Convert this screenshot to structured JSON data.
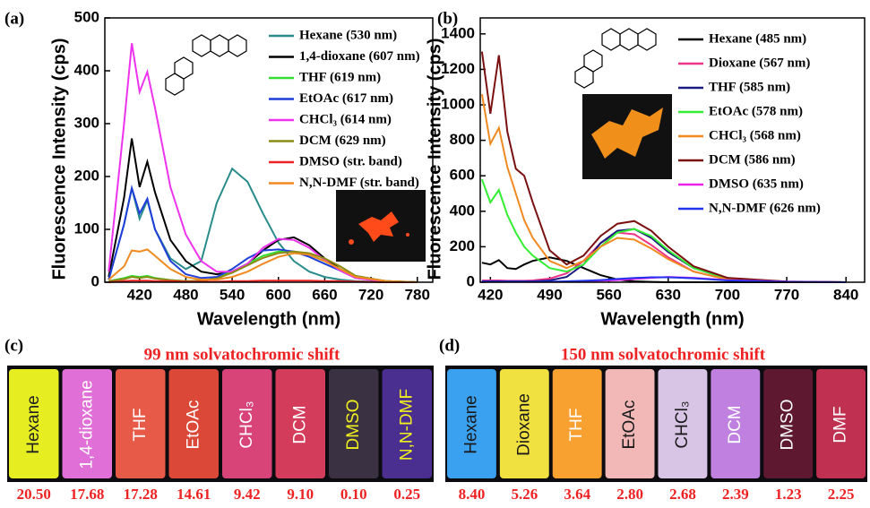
{
  "chart_data": [
    {
      "type": "line",
      "label": "(a)",
      "x_label": "Wavelength (nm)",
      "y_label": "Fluorescence Intensity (cps)",
      "xlim": [
        375,
        800
      ],
      "ylim": [
        0,
        500
      ],
      "xticks": [
        420,
        480,
        540,
        600,
        660,
        720,
        780
      ],
      "yticks": [
        0,
        100,
        200,
        300,
        400,
        500
      ],
      "x": [
        380,
        400,
        410,
        420,
        430,
        440,
        460,
        480,
        500,
        520,
        540,
        560,
        580,
        600,
        620,
        640,
        660,
        680,
        700,
        740,
        780
      ],
      "series": [
        {
          "name": "Hexane (530 nm)",
          "color": "#2a8c8c",
          "values": [
            5,
            110,
            178,
            120,
            155,
            100,
            45,
            25,
            40,
            150,
            215,
            190,
            130,
            75,
            40,
            20,
            10,
            5,
            2,
            0,
            0
          ]
        },
        {
          "name": "1,4-dioxane (607 nm)",
          "color": "#000000",
          "values": [
            10,
            160,
            272,
            180,
            228,
            170,
            80,
            40,
            20,
            15,
            20,
            35,
            60,
            80,
            85,
            70,
            45,
            25,
            10,
            2,
            0
          ]
        },
        {
          "name": "THF (619 nm)",
          "color": "#33dd33",
          "values": [
            2,
            8,
            12,
            10,
            12,
            8,
            4,
            2,
            3,
            8,
            20,
            35,
            50,
            58,
            58,
            52,
            40,
            25,
            10,
            2,
            0
          ]
        },
        {
          "name": "EtOAc (617 nm)",
          "color": "#1f3fd8",
          "values": [
            5,
            110,
            178,
            130,
            158,
            100,
            40,
            15,
            8,
            10,
            25,
            45,
            60,
            62,
            58,
            48,
            35,
            22,
            8,
            1,
            0
          ]
        },
        {
          "name": "CHCl₃ (614 nm)",
          "color": "#ee33ee",
          "values": [
            20,
            300,
            452,
            360,
            398,
            330,
            180,
            90,
            40,
            20,
            20,
            35,
            65,
            82,
            80,
            65,
            42,
            22,
            8,
            1,
            0
          ]
        },
        {
          "name": "DCM (629 nm)",
          "color": "#8b8b14",
          "values": [
            2,
            6,
            10,
            8,
            10,
            7,
            4,
            2,
            3,
            7,
            18,
            32,
            46,
            55,
            58,
            55,
            45,
            30,
            12,
            2,
            0
          ]
        },
        {
          "name": "DMSO (str. band)",
          "color": "#ee2222",
          "values": [
            0,
            2,
            3,
            3,
            3,
            2,
            2,
            1,
            1,
            1,
            2,
            2,
            3,
            3,
            3,
            3,
            2,
            2,
            1,
            0,
            0
          ]
        },
        {
          "name": "N,N-DMF (str. band)",
          "color": "#f08a20",
          "values": [
            5,
            30,
            60,
            58,
            62,
            50,
            25,
            10,
            5,
            5,
            10,
            20,
            35,
            48,
            55,
            52,
            40,
            25,
            10,
            2,
            0
          ]
        }
      ]
    },
    {
      "type": "line",
      "label": "(b)",
      "x_label": "Wavelength (nm)",
      "y_label": "Fluorescence Intensity (cps)",
      "xlim": [
        408,
        862
      ],
      "ylim": [
        0,
        1490
      ],
      "xticks": [
        420,
        490,
        560,
        630,
        700,
        770,
        840
      ],
      "yticks": [
        0,
        200,
        400,
        600,
        800,
        1000,
        1200,
        1400
      ],
      "x": [
        410,
        420,
        430,
        440,
        450,
        460,
        470,
        490,
        510,
        530,
        550,
        570,
        590,
        610,
        630,
        660,
        700,
        770,
        840
      ],
      "series": [
        {
          "name": "Hexane (485 nm)",
          "color": "#000000",
          "values": [
            110,
            100,
            125,
            80,
            75,
            100,
            120,
            140,
            120,
            80,
            40,
            15,
            5,
            2,
            0,
            0,
            0,
            0,
            0
          ]
        },
        {
          "name": "Dioxane (567 nm)",
          "color": "#ee3388",
          "values": [
            10,
            10,
            10,
            8,
            8,
            8,
            10,
            20,
            50,
            120,
            220,
            280,
            270,
            210,
            140,
            60,
            15,
            2,
            0
          ]
        },
        {
          "name": "THF (585 nm)",
          "color": "#1a1a80",
          "values": [
            5,
            5,
            5,
            5,
            5,
            5,
            5,
            10,
            30,
            100,
            220,
            290,
            300,
            250,
            170,
            80,
            20,
            3,
            0
          ]
        },
        {
          "name": "EtOAc (578 nm)",
          "color": "#33ee33",
          "values": [
            580,
            450,
            520,
            380,
            280,
            200,
            150,
            80,
            60,
            100,
            200,
            280,
            300,
            260,
            180,
            80,
            20,
            3,
            0
          ]
        },
        {
          "name": "CHCl₃ (568 nm)",
          "color": "#f08a20",
          "values": [
            1060,
            780,
            870,
            650,
            500,
            350,
            250,
            120,
            80,
            120,
            200,
            250,
            240,
            190,
            130,
            60,
            15,
            2,
            0
          ]
        },
        {
          "name": "DCM (586 nm)",
          "color": "#7a1010",
          "values": [
            1300,
            950,
            1280,
            850,
            640,
            600,
            450,
            180,
            100,
            150,
            260,
            330,
            345,
            290,
            200,
            90,
            25,
            4,
            0
          ]
        },
        {
          "name": "DMSO (635 nm)",
          "color": "#ee22ee",
          "values": [
            2,
            2,
            2,
            2,
            2,
            2,
            2,
            2,
            3,
            5,
            8,
            12,
            18,
            25,
            30,
            25,
            12,
            3,
            0
          ]
        },
        {
          "name": "N,N-DMF (626 nm)",
          "color": "#2233ee",
          "values": [
            3,
            3,
            3,
            3,
            3,
            3,
            3,
            3,
            5,
            8,
            12,
            18,
            24,
            28,
            28,
            22,
            10,
            2,
            0
          ]
        }
      ]
    }
  ],
  "photos": [
    {
      "label": "(c)",
      "title": "99 nm solvatochromic shift",
      "vials": [
        {
          "solvent": "Hexane",
          "number": "20.50",
          "color": "#e6ee22",
          "text_color": "#222222"
        },
        {
          "solvent": "1,4-dioxane",
          "number": "17.68",
          "color": "#e070d8",
          "text_color": "#ffffff"
        },
        {
          "solvent": "THF",
          "number": "17.28",
          "color": "#e85a48",
          "text_color": "#ffffff"
        },
        {
          "solvent": "EtOAc",
          "number": "14.61",
          "color": "#dc4838",
          "text_color": "#ffffff"
        },
        {
          "solvent": "CHCl₃",
          "number": "9.42",
          "color": "#d84478",
          "text_color": "#ffffff"
        },
        {
          "solvent": "DCM",
          "number": "9.10",
          "color": "#d43c5c",
          "text_color": "#ffffff"
        },
        {
          "solvent": "DMSO",
          "number": "0.10",
          "color": "#3a3242",
          "text_color": "#f0f020"
        },
        {
          "solvent": "N,N-DMF",
          "number": "0.25",
          "color": "#4a2e90",
          "text_color": "#f0f020"
        }
      ]
    },
    {
      "label": "(d)",
      "title": "150 nm solvatochromic shift",
      "vials": [
        {
          "solvent": "Hexane",
          "number": "8.40",
          "color": "#3aa0f0",
          "text_color": "#1a1a1a"
        },
        {
          "solvent": "Dioxane",
          "number": "5.26",
          "color": "#f0e040",
          "text_color": "#1a1a1a"
        },
        {
          "solvent": "THF",
          "number": "3.64",
          "color": "#f8a030",
          "text_color": "#ffffff"
        },
        {
          "solvent": "EtOAc",
          "number": "2.80",
          "color": "#f2b8b8",
          "text_color": "#1a1a1a"
        },
        {
          "solvent": "CHCl₃",
          "number": "2.68",
          "color": "#d8c4e4",
          "text_color": "#1a1a1a"
        },
        {
          "solvent": "DCM",
          "number": "2.39",
          "color": "#c080e0",
          "text_color": "#ffffff"
        },
        {
          "solvent": "DMSO",
          "number": "1.23",
          "color": "#5e1830",
          "text_color": "#ffffff"
        },
        {
          "solvent": "DMF",
          "number": "2.25",
          "color": "#c03050",
          "text_color": "#ffffff"
        }
      ]
    }
  ]
}
